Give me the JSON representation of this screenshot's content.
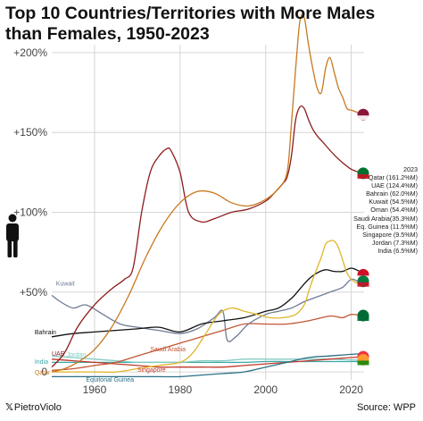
{
  "chart_data": {
    "type": "line",
    "title": "Top 10 Countries/Territories with More Males than Females, 1950-2023",
    "xlim": [
      1950,
      2023
    ],
    "ylim": [
      -5,
      205
    ],
    "x_ticks": [
      1960,
      1980,
      2000,
      2020
    ],
    "y_ticks": [
      {
        "value": 200,
        "label": "+200%"
      },
      {
        "value": 150,
        "label": "+150%"
      },
      {
        "value": 100,
        "label": "+100%"
      },
      {
        "value": 50,
        "label": "+50%"
      },
      {
        "value": 0,
        "label": "0"
      }
    ],
    "grid": true,
    "legend_title": "2023",
    "legend_position": "right",
    "legend_entries": [
      "Qatar (161.2%M)",
      "UAE (124.4%M)",
      "Bahrain (62.0%M)",
      "Kuwait (54.5%M)",
      "Oman (54.4%M)",
      "Saudi Arabia(35.3%M)",
      "Eq. Guinea (11.5%M)",
      "Singapore (9.5%M)",
      "Jordan (7.3%M)",
      "India (6.5%M)"
    ],
    "series": [
      {
        "name": "Qatar",
        "color": "#c8781e",
        "label": "Qatar",
        "x": [
          1950,
          1953,
          1956,
          1960,
          1964,
          1968,
          1972,
          1976,
          1980,
          1984,
          1988,
          1992,
          1996,
          2000,
          2003,
          2005,
          2006,
          2007,
          2008,
          2009,
          2010,
          2011,
          2012,
          2013,
          2014,
          2015,
          2016,
          2017,
          2018,
          2019,
          2020,
          2021,
          2022,
          2023
        ],
        "y": [
          0,
          2,
          6,
          14,
          28,
          48,
          72,
          92,
          106,
          113,
          112,
          106,
          104,
          108,
          115,
          125,
          155,
          190,
          220,
          222,
          205,
          190,
          178,
          175,
          190,
          197,
          188,
          178,
          172,
          165,
          164,
          163,
          162,
          161.2
        ]
      },
      {
        "name": "UAE",
        "color": "#8c1c1c",
        "label": "UAE",
        "x": [
          1950,
          1953,
          1956,
          1960,
          1964,
          1967,
          1969,
          1971,
          1973,
          1975,
          1977,
          1978,
          1980,
          1982,
          1985,
          1988,
          1992,
          1996,
          2000,
          2002,
          2004,
          2005,
          2006,
          2007,
          2008,
          2009,
          2010,
          2011,
          2012,
          2014,
          2016,
          2018,
          2020,
          2022,
          2023
        ],
        "y": [
          3,
          12,
          28,
          42,
          52,
          58,
          65,
          100,
          125,
          135,
          140,
          138,
          125,
          100,
          94,
          96,
          100,
          102,
          107,
          112,
          118,
          122,
          135,
          158,
          166,
          165,
          158,
          152,
          148,
          142,
          136,
          131,
          127,
          125,
          124.4
        ]
      },
      {
        "name": "Bahrain",
        "color": "#111111",
        "label": "Bahrain",
        "x": [
          1950,
          1955,
          1960,
          1965,
          1970,
          1975,
          1980,
          1985,
          1990,
          1995,
          2000,
          2003,
          2006,
          2008,
          2010,
          2012,
          2014,
          2016,
          2018,
          2020,
          2022,
          2023
        ],
        "y": [
          22,
          24,
          25,
          26,
          27,
          28,
          25,
          30,
          32,
          34,
          38,
          40,
          46,
          52,
          58,
          62,
          64,
          63,
          63,
          65,
          63,
          62
        ]
      },
      {
        "name": "Kuwait",
        "color": "#6e7b94",
        "label": "Kuwait",
        "x": [
          1950,
          1952,
          1955,
          1958,
          1962,
          1966,
          1970,
          1975,
          1980,
          1984,
          1988,
          1990,
          1991,
          1993,
          1996,
          2000,
          2003,
          2006,
          2009,
          2012,
          2015,
          2018,
          2020,
          2022,
          2023
        ],
        "y": [
          48,
          44,
          40,
          42,
          36,
          30,
          28,
          26,
          24,
          27,
          34,
          38,
          20,
          22,
          30,
          36,
          38,
          40,
          44,
          47,
          50,
          53,
          58,
          56,
          54.5
        ]
      },
      {
        "name": "Oman",
        "color": "#e0b52a",
        "label": "Oman",
        "x": [
          1950,
          1955,
          1960,
          1965,
          1970,
          1975,
          1980,
          1983,
          1986,
          1989,
          1992,
          1995,
          1998,
          2001,
          2004,
          2007,
          2009,
          2010,
          2011,
          2012,
          2013,
          2014,
          2015,
          2016,
          2017,
          2018,
          2019,
          2020,
          2021,
          2022,
          2023
        ],
        "y": [
          0,
          0,
          0,
          0,
          2,
          4,
          6,
          12,
          24,
          36,
          40,
          38,
          36,
          34,
          34,
          36,
          42,
          50,
          58,
          65,
          72,
          80,
          82,
          82,
          78,
          70,
          62,
          58,
          56,
          55,
          54.4
        ]
      },
      {
        "name": "Saudi Arabia",
        "color": "#c45533",
        "label": "Saudi Arabia",
        "x": [
          1950,
          1955,
          1960,
          1965,
          1970,
          1975,
          1980,
          1985,
          1990,
          1995,
          2000,
          2005,
          2010,
          2015,
          2018,
          2020,
          2023
        ],
        "y": [
          1,
          2,
          4,
          6,
          10,
          14,
          18,
          22,
          26,
          30,
          30,
          30,
          32,
          35,
          34,
          36,
          35.3
        ]
      },
      {
        "name": "Eq. Guinea",
        "color": "#2c6f86",
        "label": "Equitorial Guinea",
        "x": [
          1950,
          1955,
          1960,
          1965,
          1970,
          1975,
          1980,
          1985,
          1990,
          1995,
          2000,
          2005,
          2010,
          2015,
          2020,
          2023
        ],
        "y": [
          -3,
          -3,
          -3,
          -3,
          -3,
          -3,
          -3,
          -2,
          -1,
          0,
          3,
          6,
          9,
          10,
          11,
          11.5
        ]
      },
      {
        "name": "Singapore",
        "color": "#c0392b",
        "label": "Singapore",
        "x": [
          1950,
          1955,
          1960,
          1965,
          1970,
          1975,
          1980,
          1985,
          1990,
          1995,
          2000,
          2005,
          2010,
          2015,
          2020,
          2023
        ],
        "y": [
          8,
          7,
          6,
          5,
          4,
          3,
          3,
          3,
          3,
          4,
          5,
          6,
          7,
          8,
          9,
          9.5
        ]
      },
      {
        "name": "Jordan",
        "color": "#84ccc4",
        "label": "Jordan",
        "x": [
          1950,
          1955,
          1960,
          1965,
          1970,
          1975,
          1980,
          1985,
          1990,
          1995,
          2000,
          2005,
          2010,
          2015,
          2020,
          2023
        ],
        "y": [
          10,
          9,
          8,
          7,
          6,
          6,
          6,
          7,
          7,
          8,
          8,
          8,
          8,
          8,
          7.5,
          7.3
        ]
      },
      {
        "name": "India",
        "color": "#3aa8a6",
        "label": "India",
        "x": [
          1950,
          1955,
          1960,
          1965,
          1970,
          1975,
          1980,
          1985,
          1990,
          1995,
          2000,
          2005,
          2010,
          2015,
          2020,
          2023
        ],
        "y": [
          6,
          6,
          6,
          6,
          6,
          6,
          6,
          6,
          6,
          6,
          6.5,
          6.5,
          6.5,
          6.5,
          6.5,
          6.5
        ]
      }
    ]
  },
  "footer": {
    "credit_icon": "x-logo-icon",
    "credit": "PietroViolo",
    "source": "Source: WPP"
  }
}
